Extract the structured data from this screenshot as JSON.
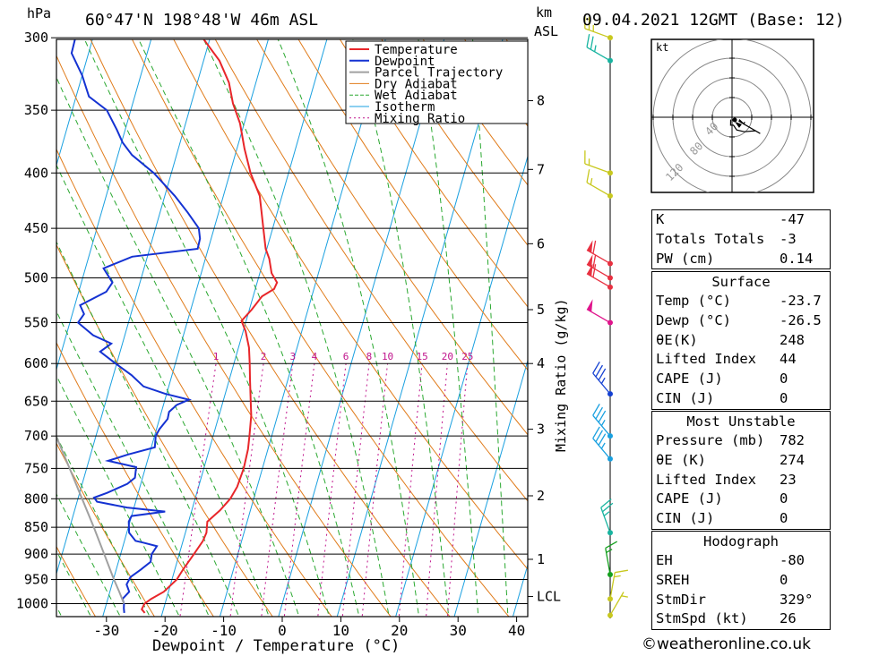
{
  "header": {
    "location": "60°47'N  198°48'W  46m  ASL",
    "datetime": "09.04.2021  12GMT  (Base: 12)",
    "p_unit": "hPa",
    "km_unit": "km",
    "asl_unit": "ASL"
  },
  "chart_data": {
    "type": "line",
    "title": "",
    "xlabel": "Dewpoint / Temperature (°C)",
    "ylabel": "hPa",
    "y2label": "Mixing Ratio (g/kg)",
    "xlim": [
      -40,
      40
    ],
    "ylim": [
      1050,
      300
    ],
    "x_ticks": [
      -30,
      -20,
      -10,
      0,
      10,
      20,
      30,
      40
    ],
    "pressure_levels": [
      300,
      350,
      400,
      450,
      500,
      550,
      600,
      650,
      700,
      750,
      800,
      850,
      900,
      950,
      1000
    ],
    "km_ticks": [
      {
        "label": "8",
        "p": 343
      },
      {
        "label": "7",
        "p": 397
      },
      {
        "label": "6",
        "p": 465
      },
      {
        "label": "5",
        "p": 535
      },
      {
        "label": "4",
        "p": 600
      },
      {
        "label": "3",
        "p": 690
      },
      {
        "label": "2",
        "p": 795
      },
      {
        "label": "1",
        "p": 910
      },
      {
        "label": "LCL",
        "p": 985
      }
    ],
    "mixing_ratio_labels": [
      "1",
      "2",
      "3",
      "4",
      "6",
      "8",
      "10",
      "15",
      "20",
      "25"
    ],
    "legend": [
      "Temperature",
      "Dewpoint",
      "Parcel Trajectory",
      "Dry Adiabat",
      "Wet Adiabat",
      "Isotherm",
      "Mixing Ratio"
    ],
    "colors": {
      "temperature": "#e8262a",
      "dewpoint": "#1432d2",
      "parcel": "#a0a0a0",
      "dry_adiabat": "#e07b1a",
      "wet_adiabat": "#2aa830",
      "isotherm": "#1aa0e0",
      "mixing_ratio": "#c0148c"
    },
    "series": [
      {
        "name": "Temperature",
        "points": [
          [
            1020,
            -23.0
          ],
          [
            1012,
            -23.7
          ],
          [
            1000,
            -23.5
          ],
          [
            990,
            -22.6
          ],
          [
            975,
            -20.8
          ],
          [
            950,
            -19.2
          ],
          [
            930,
            -18.6
          ],
          [
            900,
            -17.5
          ],
          [
            875,
            -16.6
          ],
          [
            860,
            -16.4
          ],
          [
            840,
            -16.8
          ],
          [
            820,
            -15.2
          ],
          [
            800,
            -14.0
          ],
          [
            780,
            -13.4
          ],
          [
            750,
            -13.2
          ],
          [
            720,
            -13.4
          ],
          [
            700,
            -13.8
          ],
          [
            670,
            -14.5
          ],
          [
            650,
            -15.3
          ],
          [
            620,
            -16.5
          ],
          [
            600,
            -17.3
          ],
          [
            580,
            -18.2
          ],
          [
            560,
            -19.6
          ],
          [
            548,
            -20.8
          ],
          [
            535,
            -19.6
          ],
          [
            520,
            -18.5
          ],
          [
            512,
            -16.8
          ],
          [
            505,
            -16.6
          ],
          [
            495,
            -18.0
          ],
          [
            480,
            -19.1
          ],
          [
            470,
            -20.2
          ],
          [
            450,
            -21.6
          ],
          [
            420,
            -23.8
          ],
          [
            400,
            -26.5
          ],
          [
            380,
            -28.7
          ],
          [
            360,
            -30.7
          ],
          [
            345,
            -32.9
          ],
          [
            330,
            -34.6
          ],
          [
            315,
            -37.3
          ],
          [
            300,
            -41.3
          ]
        ]
      },
      {
        "name": "Dewpoint",
        "points": [
          [
            1020,
            -26.5
          ],
          [
            1010,
            -26.8
          ],
          [
            1000,
            -27.0
          ],
          [
            990,
            -27.5
          ],
          [
            975,
            -26.7
          ],
          [
            960,
            -27.5
          ],
          [
            945,
            -27.2
          ],
          [
            930,
            -25.8
          ],
          [
            915,
            -24.5
          ],
          [
            900,
            -24.7
          ],
          [
            885,
            -24.2
          ],
          [
            878,
            -26.8
          ],
          [
            875,
            -28.1
          ],
          [
            860,
            -29.6
          ],
          [
            840,
            -30.2
          ],
          [
            830,
            -30.0
          ],
          [
            822,
            -24.5
          ],
          [
            815,
            -31.2
          ],
          [
            805,
            -36.6
          ],
          [
            798,
            -37.3
          ],
          [
            790,
            -35.3
          ],
          [
            775,
            -32.3
          ],
          [
            765,
            -31.3
          ],
          [
            748,
            -31.6
          ],
          [
            738,
            -36.7
          ],
          [
            728,
            -33.6
          ],
          [
            717,
            -29.4
          ],
          [
            700,
            -29.8
          ],
          [
            690,
            -29.5
          ],
          [
            675,
            -28.6
          ],
          [
            665,
            -28.7
          ],
          [
            655,
            -27.7
          ],
          [
            648,
            -25.9
          ],
          [
            640,
            -30.2
          ],
          [
            630,
            -34.3
          ],
          [
            615,
            -36.9
          ],
          [
            600,
            -40.2
          ],
          [
            585,
            -43.4
          ],
          [
            575,
            -41.9
          ],
          [
            565,
            -45.4
          ],
          [
            550,
            -48.6
          ],
          [
            540,
            -48.0
          ],
          [
            530,
            -49.1
          ],
          [
            515,
            -45.3
          ],
          [
            505,
            -44.7
          ],
          [
            490,
            -46.9
          ],
          [
            478,
            -42.6
          ],
          [
            470,
            -31.8
          ],
          [
            460,
            -31.9
          ],
          [
            450,
            -32.6
          ],
          [
            435,
            -35.3
          ],
          [
            420,
            -38.3
          ],
          [
            400,
            -43.0
          ],
          [
            385,
            -47.6
          ],
          [
            375,
            -49.8
          ],
          [
            365,
            -51.4
          ],
          [
            350,
            -54.1
          ],
          [
            340,
            -57.8
          ],
          [
            325,
            -60.0
          ],
          [
            310,
            -62.9
          ],
          [
            300,
            -63.0
          ]
        ]
      },
      {
        "name": "Parcel Trajectory",
        "points": [
          [
            1000,
            -27.0
          ],
          [
            975,
            -28.4
          ],
          [
            950,
            -29.9
          ],
          [
            900,
            -32.8
          ],
          [
            850,
            -35.9
          ],
          [
            800,
            -39.3
          ],
          [
            750,
            -42.9
          ],
          [
            700,
            -46.8
          ]
        ]
      }
    ],
    "wind_barbs": [
      {
        "p": 300,
        "color": "#c8c81e",
        "dir": 290,
        "kt": 25
      },
      {
        "p": 315,
        "color": "#18b4a0",
        "dir": 300,
        "kt": 25
      },
      {
        "p": 400,
        "color": "#c8c81e",
        "dir": 290,
        "kt": 15
      },
      {
        "p": 420,
        "color": "#c8c81e",
        "dir": 300,
        "kt": 15
      },
      {
        "p": 485,
        "color": "#e83040",
        "dir": 300,
        "kt": 60
      },
      {
        "p": 500,
        "color": "#e83040",
        "dir": 300,
        "kt": 60
      },
      {
        "p": 510,
        "color": "#e83040",
        "dir": 300,
        "kt": 60
      },
      {
        "p": 550,
        "color": "#e0148c",
        "dir": 300,
        "kt": 50
      },
      {
        "p": 640,
        "color": "#1440d2",
        "dir": 320,
        "kt": 35
      },
      {
        "p": 700,
        "color": "#18a0e0",
        "dir": 320,
        "kt": 35
      },
      {
        "p": 735,
        "color": "#18a0e0",
        "dir": 320,
        "kt": 35
      },
      {
        "p": 860,
        "color": "#18b4a0",
        "dir": 340,
        "kt": 25
      },
      {
        "p": 940,
        "color": "#14a01e",
        "dir": 350,
        "kt": 15
      },
      {
        "p": 990,
        "color": "#c8c81e",
        "dir": 10,
        "kt": 15
      },
      {
        "p": 1025,
        "color": "#c8c81e",
        "dir": 30,
        "kt": 5
      }
    ],
    "hodograph": {
      "unit": "kt",
      "ring_labels": [
        "40",
        "80",
        "120"
      ]
    }
  },
  "indices": {
    "K": "-47",
    "Totals Totals": "-3",
    "PW (cm)": "0.14"
  },
  "surface": {
    "title": "Surface",
    "temp_label": "Temp (°C)",
    "temp": "-23.7",
    "dewp_label": "Dewp (°C)",
    "dewp": "-26.5",
    "thetae_label": "θE(K)",
    "thetae": "248",
    "li_label": "Lifted Index",
    "li": "44",
    "cape_label": "CAPE (J)",
    "cape": "0",
    "cin_label": "CIN (J)",
    "cin": "0"
  },
  "most_unstable": {
    "title": "Most Unstable",
    "pressure_label": "Pressure (mb)",
    "pressure": "782",
    "thetae_label": "θE (K)",
    "thetae": "274",
    "li_label": "Lifted Index",
    "li": "23",
    "cape_label": "CAPE (J)",
    "cape": "0",
    "cin_label": "CIN (J)",
    "cin": "0"
  },
  "hodo_stats": {
    "title": "Hodograph",
    "eh_label": "EH",
    "eh": "-80",
    "srh_label": "SREH",
    "srh": "0",
    "dir_label": "StmDir",
    "dir": "329°",
    "spd_label": "StmSpd (kt)",
    "spd": "26"
  },
  "credit": "©weatheronline.co.uk"
}
